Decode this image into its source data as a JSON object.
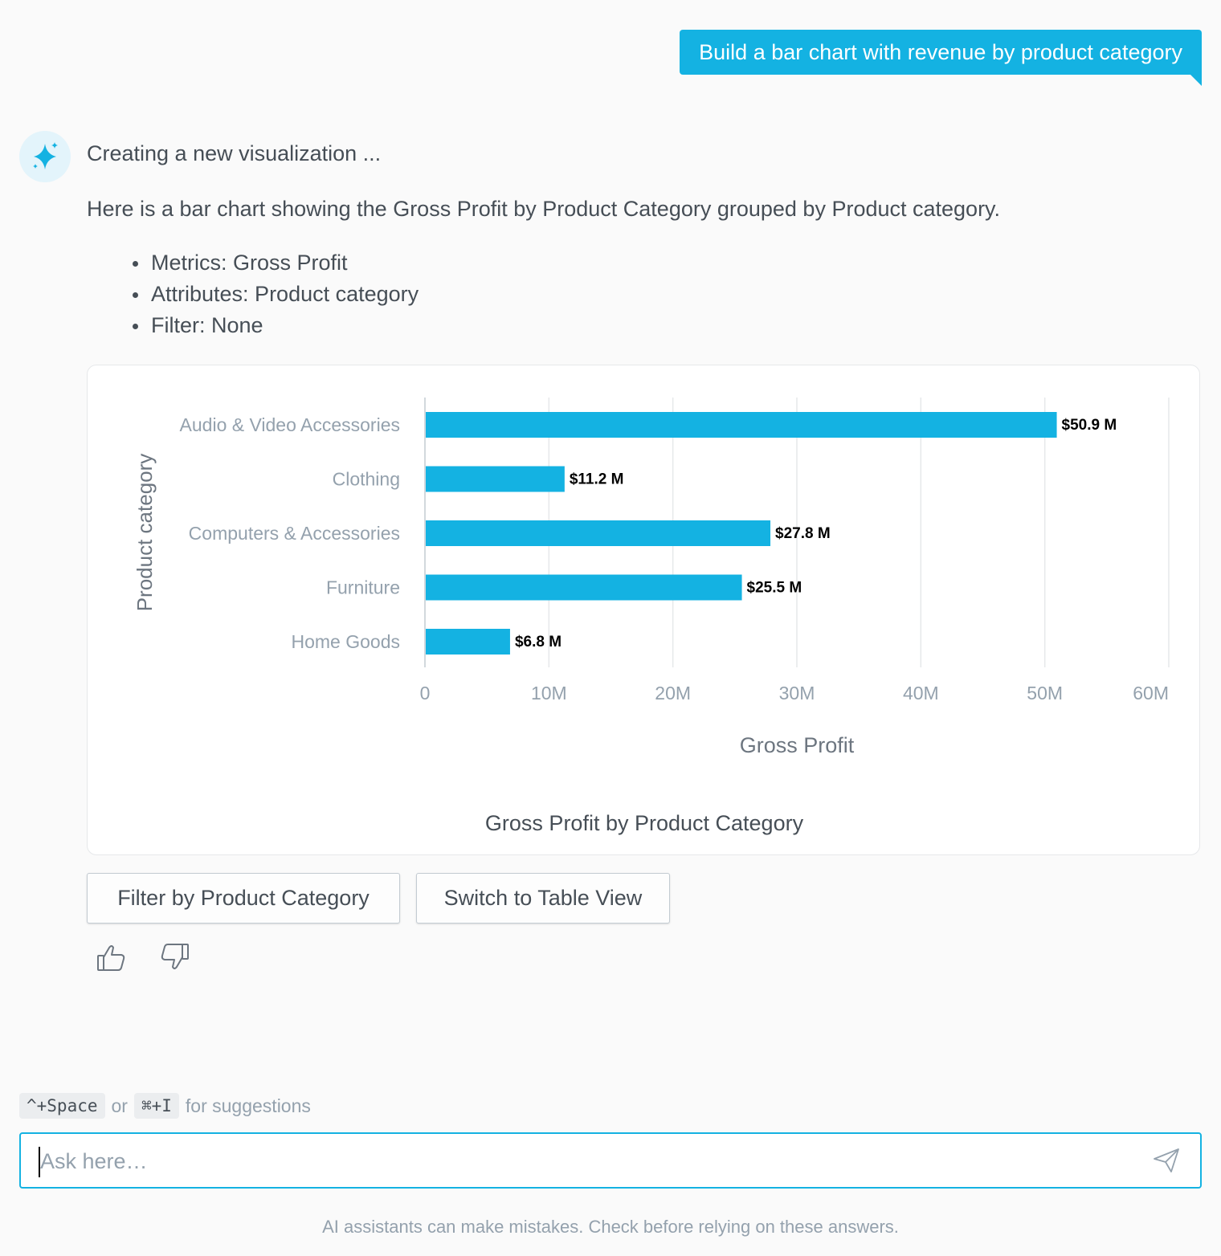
{
  "user_message": "Build a bar chart with revenue by product category",
  "assistant": {
    "avatar_icon": "sparkle-icon",
    "status": "Creating a new visualization ...",
    "intro": "Here is a bar chart showing the Gross Profit by Product Category grouped by Product category.",
    "details": [
      "Metrics: Gross Profit",
      "Attributes: Product category",
      "Filter: None"
    ]
  },
  "chart_data": {
    "type": "bar",
    "orientation": "horizontal",
    "title": "Gross Profit by Product Category",
    "xlabel": "Gross Profit",
    "ylabel": "Product category",
    "categories": [
      "Audio & Video Accessories",
      "Clothing",
      "Computers & Accessories",
      "Furniture",
      "Home Goods"
    ],
    "values": [
      50.9,
      11.2,
      27.8,
      25.5,
      6.8
    ],
    "value_unit": "M",
    "data_labels": [
      "$50.9 M",
      "$11.2 M",
      "$27.8 M",
      "$25.5 M",
      "$6.8 M"
    ],
    "x_ticks": [
      0,
      10,
      20,
      30,
      40,
      50,
      60
    ],
    "x_tick_labels": [
      "0",
      "10M",
      "20M",
      "30M",
      "40M",
      "50M",
      "60M"
    ],
    "xlim": [
      0,
      60
    ],
    "grid": true,
    "bar_color": "#14b2e2"
  },
  "actions": {
    "filter_label": "Filter by Product Category",
    "table_view_label": "Switch to Table View"
  },
  "feedback": {
    "like_icon": "thumbs-up-icon",
    "dislike_icon": "thumbs-down-icon"
  },
  "hint": {
    "shortcut_1": "^+Space",
    "separator": "or",
    "shortcut_2": "⌘+I",
    "suffix": "for suggestions"
  },
  "input": {
    "placeholder": "Ask here…",
    "value": "",
    "send_icon": "send-icon"
  },
  "disclaimer": "AI assistants can make mistakes. Check before relying on these answers.",
  "colors": {
    "accent": "#14b2e2",
    "text": "#464e56",
    "muted": "#94a1ad"
  }
}
